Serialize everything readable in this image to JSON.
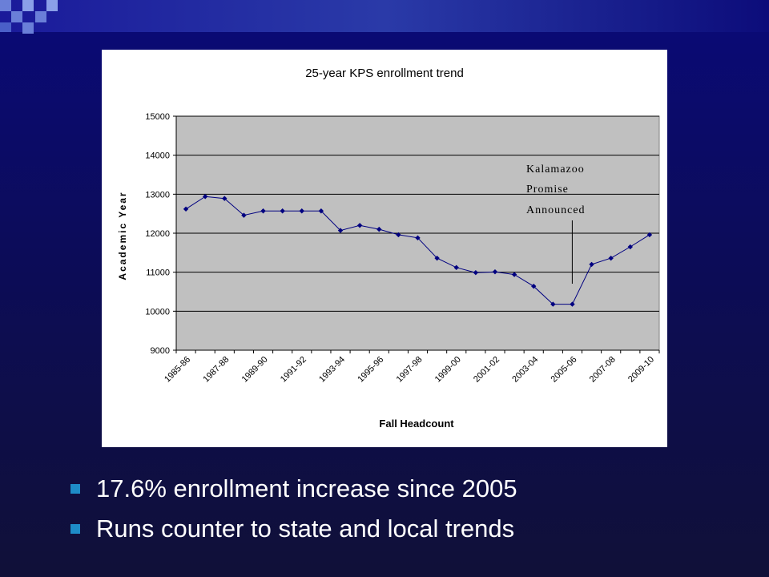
{
  "bullets": [
    "17.6% enrollment increase since 2005",
    "Runs counter to state and local trends"
  ],
  "chart_data": {
    "type": "line",
    "title": "25-year KPS enrollment trend",
    "xlabel": "Fall Headcount",
    "ylabel": "Academic Year",
    "ylim": [
      9000,
      15000
    ],
    "yticks": [
      9000,
      10000,
      11000,
      12000,
      13000,
      14000,
      15000
    ],
    "categories": [
      "1985-86",
      "1986-87",
      "1987-88",
      "1988-89",
      "1989-90",
      "1990-91",
      "1991-92",
      "1992-93",
      "1993-94",
      "1994-95",
      "1995-96",
      "1996-97",
      "1997-98",
      "1998-99",
      "1999-00",
      "2000-01",
      "2001-02",
      "2002-03",
      "2003-04",
      "2004-05",
      "2005-06",
      "2006-07",
      "2007-08",
      "2008-09",
      "2009-10"
    ],
    "xtick_labels_shown": [
      "1985-86",
      "1987-88",
      "1989-90",
      "1991-92",
      "1993-94",
      "1995-96",
      "1997-98",
      "1999-00",
      "2001-02",
      "2003-04",
      "2005-06",
      "2007-08",
      "2009-10"
    ],
    "values": [
      12620,
      12940,
      12890,
      12460,
      12570,
      12570,
      12570,
      12570,
      12070,
      12200,
      12100,
      11960,
      11880,
      11360,
      11120,
      10990,
      11010,
      10940,
      10640,
      10180,
      10180,
      11200,
      11360,
      11650,
      11960
    ],
    "grid": true,
    "line_color": "#000080",
    "plot_background": "#c0c0c0",
    "annotation": {
      "lines": [
        "Kalamazoo",
        "Promise",
        "Announced"
      ],
      "target_category": "2005-06"
    }
  }
}
